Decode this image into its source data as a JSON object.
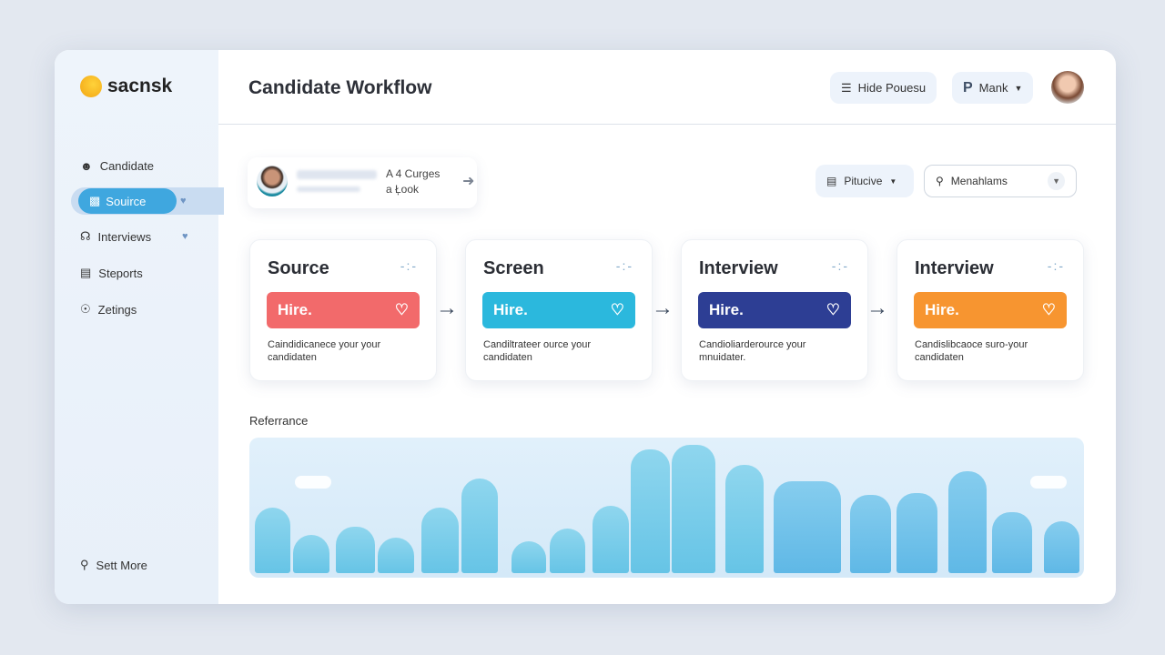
{
  "brand": {
    "name": "sacnsk"
  },
  "sidebar": {
    "items": [
      {
        "label": "Candidate",
        "icon": "user-icon"
      },
      {
        "label": "Souirce",
        "icon": "basket-icon",
        "active": true
      },
      {
        "label": "Interviews",
        "icon": "headset-icon"
      },
      {
        "label": "Steports",
        "icon": "clipboard-icon"
      },
      {
        "label": "Zetings",
        "icon": "globe-icon"
      }
    ],
    "footer": {
      "label": "Sett More",
      "icon": "search-gear-icon"
    }
  },
  "header": {
    "title": "Candidate Workflow",
    "hide_button": "Hide Pouesu",
    "user_menu": "Mank"
  },
  "candidate": {
    "line1": "A 4 Curges",
    "line2": "a Ł̦ook"
  },
  "filters": {
    "view": "Pitucive",
    "search": "Menahlams"
  },
  "stages": [
    {
      "title": "Source",
      "action": "Hire.",
      "desc": "Caindidicanece your your candidaten",
      "color": "#f26a6b"
    },
    {
      "title": "Screen",
      "action": "Hire.",
      "desc": "Candiltrateer ource your candidaten",
      "color": "#2bb8dd"
    },
    {
      "title": "Interview",
      "action": "Hire.",
      "desc": "Candioliarderource your mnuidater.",
      "color": "#2d3e94"
    },
    {
      "title": "Interview",
      "action": "Hire.",
      "desc": "Candislibcaoce suro-your candidaten",
      "color": "#f79530"
    }
  ],
  "reference": {
    "label": "Referrance",
    "values_percent": [
      50,
      29,
      35,
      27,
      50,
      72,
      24,
      34,
      51,
      94,
      97,
      82,
      70,
      59,
      61,
      77,
      46,
      39
    ]
  }
}
